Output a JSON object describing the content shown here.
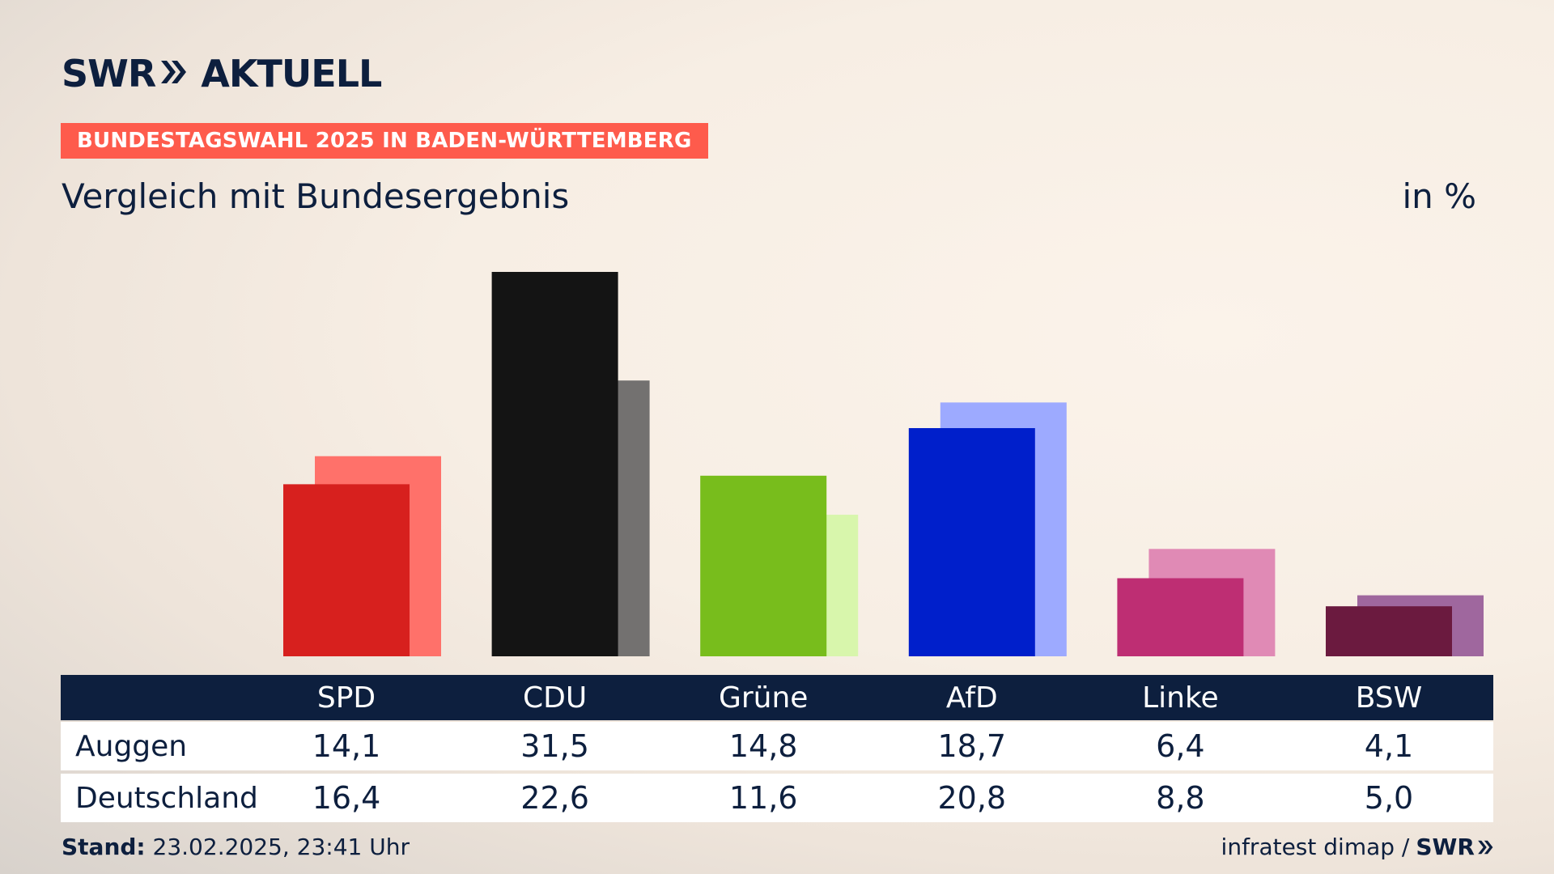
{
  "brand": {
    "swr": "SWR",
    "aktuell": "AKTUELL"
  },
  "banner": "BUNDESTAGSWAHL 2025 IN BADEN-WÜRTTEMBERG",
  "subtitle": "Vergleich mit Bundesergebnis",
  "unit": "in %",
  "table": {
    "row_labels": [
      "Auggen",
      "Deutschland"
    ]
  },
  "footer": {
    "stand_label": "Stand:",
    "stand_value": "23.02.2025, 23:41 Uhr",
    "source": "infratest dimap /",
    "source_brand": "SWR"
  },
  "chart_data": {
    "type": "bar",
    "categories": [
      "SPD",
      "CDU",
      "Grüne",
      "AfD",
      "Linke",
      "BSW"
    ],
    "series": [
      {
        "name": "Auggen",
        "values": [
          14.1,
          31.5,
          14.8,
          18.7,
          6.4,
          4.1
        ],
        "colors": [
          "#d7201e",
          "#141414",
          "#78bd1c",
          "#001fcb",
          "#be2e73",
          "#6b1a3f"
        ]
      },
      {
        "name": "Deutschland",
        "values": [
          16.4,
          22.6,
          11.6,
          20.8,
          8.8,
          5.0
        ],
        "colors": [
          "#ff716a",
          "#737170",
          "#d8f6ac",
          "#9daaff",
          "#e08ab5",
          "#9f679e"
        ]
      }
    ],
    "value_labels": [
      [
        "14,1",
        "31,5",
        "14,8",
        "18,7",
        "6,4",
        "4,1"
      ],
      [
        "16,4",
        "22,6",
        "11,6",
        "20,8",
        "8,8",
        "5,0"
      ]
    ],
    "ylim": [
      0,
      31.5
    ],
    "legend": "table-below"
  }
}
